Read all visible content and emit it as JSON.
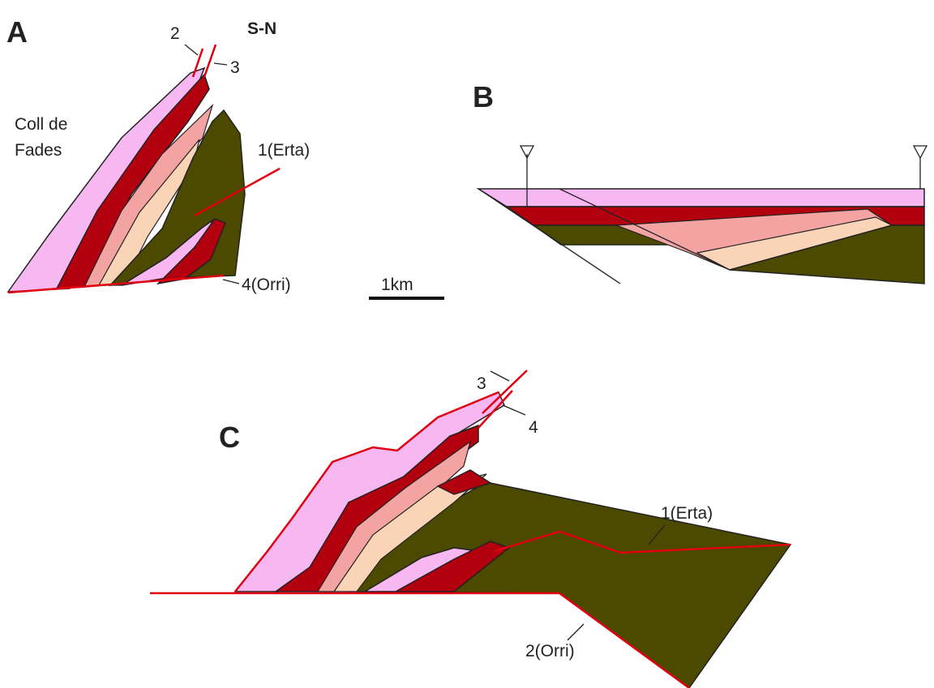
{
  "panels": [
    {
      "label": "A",
      "orientation": "S-N",
      "faults": [
        "2",
        "3",
        "1(Erta)",
        "4(Orri)"
      ],
      "place": [
        "Coll de",
        "Fades"
      ]
    },
    {
      "label": "B"
    },
    {
      "label": "C",
      "faults": [
        "3",
        "4",
        "1(Erta)",
        "2(Orri)"
      ]
    }
  ],
  "scale_bar": "1km"
}
